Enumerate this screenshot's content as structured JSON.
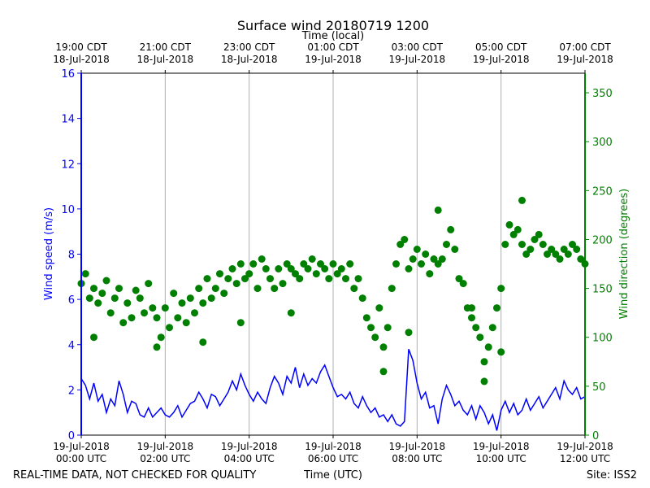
{
  "chart_data": {
    "type": "line+scatter",
    "title": "Surface wind 20180719 1200",
    "top_axis_label": "Time (local)",
    "xlabel": "Time (UTC)",
    "ylabel_left": "Wind speed (m/s)",
    "ylabel_right": "Wind direction (degrees)",
    "footer_left": "REAL-TIME DATA, NOT CHECKED FOR QUALITY",
    "footer_right": "Site: ISS2",
    "x_range_hours_utc": [
      0,
      12
    ],
    "ylim_left": [
      0,
      16
    ],
    "ylim_right": [
      0,
      370
    ],
    "grid_vertical": true,
    "colors": {
      "speed": "#0000ff",
      "direction": "#008000",
      "grid": "#b0b0b0",
      "frame": "#000000"
    },
    "bottom_ticks": [
      {
        "hour": 0,
        "line1": "19-Jul-2018",
        "line2": "00:00 UTC"
      },
      {
        "hour": 2,
        "line1": "19-Jul-2018",
        "line2": "02:00 UTC"
      },
      {
        "hour": 4,
        "line1": "19-Jul-2018",
        "line2": "04:00 UTC"
      },
      {
        "hour": 6,
        "line1": "19-Jul-2018",
        "line2": "06:00 UTC"
      },
      {
        "hour": 8,
        "line1": "19-Jul-2018",
        "line2": "08:00 UTC"
      },
      {
        "hour": 10,
        "line1": "19-Jul-2018",
        "line2": "10:00 UTC"
      },
      {
        "hour": 12,
        "line1": "19-Jul-2018",
        "line2": "12:00 UTC"
      }
    ],
    "top_ticks": [
      {
        "hour": 0,
        "line1": "19:00 CDT",
        "line2": "18-Jul-2018"
      },
      {
        "hour": 2,
        "line1": "21:00 CDT",
        "line2": "18-Jul-2018"
      },
      {
        "hour": 4,
        "line1": "23:00 CDT",
        "line2": "18-Jul-2018"
      },
      {
        "hour": 6,
        "line1": "01:00 CDT",
        "line2": "19-Jul-2018"
      },
      {
        "hour": 8,
        "line1": "03:00 CDT",
        "line2": "19-Jul-2018"
      },
      {
        "hour": 10,
        "line1": "05:00 CDT",
        "line2": "19-Jul-2018"
      },
      {
        "hour": 12,
        "line1": "07:00 CDT",
        "line2": "19-Jul-2018"
      }
    ],
    "left_ticks": [
      0,
      2,
      4,
      6,
      8,
      10,
      12,
      14,
      16
    ],
    "right_ticks": [
      0,
      50,
      100,
      150,
      200,
      250,
      300,
      350
    ],
    "series": [
      {
        "name": "Wind speed",
        "axis": "left",
        "style": "line",
        "x_hours": [
          0,
          0.1,
          0.2,
          0.3,
          0.4,
          0.5,
          0.6,
          0.7,
          0.8,
          0.9,
          1.0,
          1.1,
          1.2,
          1.3,
          1.4,
          1.5,
          1.6,
          1.7,
          1.8,
          1.9,
          2.0,
          2.1,
          2.2,
          2.3,
          2.4,
          2.5,
          2.6,
          2.7,
          2.8,
          2.9,
          3.0,
          3.1,
          3.2,
          3.3,
          3.4,
          3.5,
          3.6,
          3.7,
          3.8,
          3.9,
          4.0,
          4.1,
          4.2,
          4.3,
          4.4,
          4.5,
          4.6,
          4.7,
          4.8,
          4.9,
          5.0,
          5.1,
          5.2,
          5.3,
          5.4,
          5.5,
          5.6,
          5.7,
          5.8,
          5.9,
          6.0,
          6.1,
          6.2,
          6.3,
          6.4,
          6.5,
          6.6,
          6.7,
          6.8,
          6.9,
          7.0,
          7.1,
          7.2,
          7.3,
          7.4,
          7.5,
          7.6,
          7.7,
          7.8,
          7.9,
          8.0,
          8.1,
          8.2,
          8.3,
          8.4,
          8.5,
          8.6,
          8.7,
          8.8,
          8.9,
          9.0,
          9.1,
          9.2,
          9.3,
          9.4,
          9.5,
          9.6,
          9.7,
          9.8,
          9.9,
          10.0,
          10.1,
          10.2,
          10.3,
          10.4,
          10.5,
          10.6,
          10.7,
          10.8,
          10.9,
          11.0,
          11.1,
          11.2,
          11.3,
          11.4,
          11.5,
          11.6,
          11.7,
          11.8,
          11.9,
          12.0
        ],
        "values": [
          2.5,
          2.2,
          1.6,
          2.3,
          1.5,
          1.8,
          1.0,
          1.6,
          1.3,
          2.4,
          1.8,
          1.0,
          1.5,
          1.4,
          0.9,
          0.8,
          1.2,
          0.8,
          1.0,
          1.2,
          0.9,
          0.8,
          1.0,
          1.3,
          0.8,
          1.1,
          1.4,
          1.5,
          1.9,
          1.6,
          1.2,
          1.8,
          1.7,
          1.3,
          1.6,
          1.9,
          2.4,
          2.0,
          2.7,
          2.2,
          1.8,
          1.5,
          1.9,
          1.6,
          1.4,
          2.1,
          2.6,
          2.3,
          1.8,
          2.6,
          2.3,
          3.0,
          2.1,
          2.7,
          2.2,
          2.5,
          2.3,
          2.8,
          3.1,
          2.6,
          2.1,
          1.7,
          1.8,
          1.6,
          1.9,
          1.4,
          1.2,
          1.7,
          1.3,
          1.0,
          1.2,
          0.8,
          0.9,
          0.6,
          0.9,
          0.5,
          0.4,
          0.6,
          3.8,
          3.3,
          2.3,
          1.6,
          1.9,
          1.2,
          1.3,
          0.5,
          1.6,
          2.2,
          1.8,
          1.3,
          1.5,
          1.1,
          0.9,
          1.3,
          0.7,
          1.3,
          1.0,
          0.5,
          0.9,
          0.2,
          1.1,
          1.5,
          1.0,
          1.4,
          0.9,
          1.1,
          1.6,
          1.1,
          1.4,
          1.7,
          1.2,
          1.5,
          1.8,
          2.1,
          1.6,
          2.4,
          2.0,
          1.8,
          2.1,
          1.6,
          1.7
        ]
      },
      {
        "name": "Wind direction",
        "axis": "right",
        "style": "scatter",
        "x_hours": [
          0,
          0.1,
          0.2,
          0.3,
          0.4,
          0.5,
          0.6,
          0.7,
          0.8,
          0.9,
          1.0,
          1.1,
          1.2,
          1.3,
          1.4,
          1.5,
          1.6,
          1.7,
          1.8,
          1.9,
          2.0,
          2.1,
          2.2,
          2.3,
          2.4,
          2.5,
          2.6,
          2.7,
          2.8,
          2.9,
          3.0,
          3.1,
          3.2,
          3.3,
          3.4,
          3.5,
          3.6,
          3.7,
          3.8,
          3.9,
          4.0,
          4.1,
          4.2,
          4.3,
          4.4,
          4.5,
          4.6,
          4.7,
          4.8,
          4.9,
          5.0,
          5.1,
          5.2,
          5.3,
          5.4,
          5.5,
          5.6,
          5.7,
          5.8,
          5.9,
          6.0,
          6.1,
          6.2,
          6.3,
          6.4,
          6.5,
          6.6,
          6.7,
          6.8,
          6.9,
          7.0,
          7.1,
          7.2,
          7.3,
          7.4,
          7.5,
          7.6,
          7.7,
          7.8,
          7.9,
          8.0,
          8.1,
          8.2,
          8.3,
          8.4,
          8.5,
          8.6,
          8.7,
          8.8,
          8.9,
          9.0,
          9.1,
          9.2,
          9.3,
          9.4,
          9.5,
          9.6,
          9.7,
          9.8,
          9.9,
          10.0,
          10.1,
          10.2,
          10.3,
          10.4,
          10.5,
          10.6,
          10.7,
          10.8,
          10.9,
          11.0,
          11.1,
          11.2,
          11.3,
          11.4,
          11.5,
          11.6,
          11.7,
          11.8,
          11.9,
          12.0
        ],
        "values": [
          155,
          165,
          140,
          150,
          135,
          145,
          158,
          125,
          140,
          150,
          115,
          135,
          120,
          148,
          140,
          125,
          155,
          130,
          120,
          100,
          130,
          110,
          145,
          120,
          135,
          115,
          140,
          125,
          150,
          135,
          160,
          140,
          150,
          165,
          145,
          160,
          170,
          155,
          175,
          160,
          165,
          175,
          150,
          180,
          170,
          160,
          150,
          170,
          155,
          175,
          170,
          165,
          160,
          175,
          170,
          180,
          165,
          175,
          170,
          160,
          175,
          165,
          170,
          160,
          175,
          150,
          160,
          140,
          120,
          110,
          100,
          130,
          90,
          110,
          150,
          175,
          195,
          200,
          170,
          180,
          190,
          175,
          185,
          165,
          180,
          175,
          180,
          195,
          210,
          190,
          160,
          155,
          130,
          120,
          110,
          100,
          75,
          90,
          110,
          130,
          150,
          195,
          215,
          205,
          210,
          195,
          185,
          190,
          200,
          205,
          195,
          185,
          190,
          185,
          180,
          190,
          185,
          195,
          190,
          180,
          175
        ]
      },
      {
        "name": "Wind direction (outliers)",
        "axis": "right",
        "style": "scatter",
        "x_hours": [
          0.3,
          1.8,
          2.9,
          3.8,
          5.0,
          7.2,
          7.8,
          8.5,
          9.3,
          9.6,
          10.0,
          10.5
        ],
        "values": [
          100,
          90,
          95,
          115,
          125,
          65,
          105,
          230,
          130,
          55,
          85,
          240
        ]
      }
    ]
  }
}
